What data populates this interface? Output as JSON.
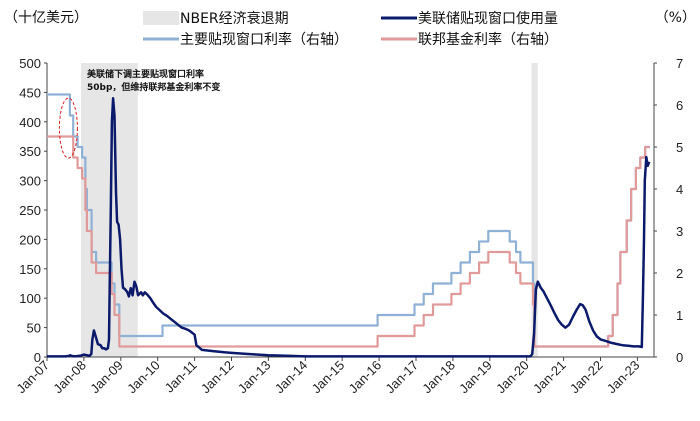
{
  "chart_data": {
    "type": "line",
    "left_unit": "（十亿美元）",
    "right_unit": "（%）",
    "left_axis": {
      "min": 0,
      "max": 500,
      "ticks": [
        0,
        50,
        100,
        150,
        200,
        250,
        300,
        350,
        400,
        450,
        500
      ]
    },
    "right_axis": {
      "min": 0,
      "max": 7,
      "ticks": [
        0,
        1,
        2,
        3,
        4,
        5,
        6,
        7
      ]
    },
    "x_range": [
      2007.0,
      2023.45
    ],
    "x_ticks": [
      {
        "label": "Jan-07",
        "x": 2007
      },
      {
        "label": "Jan-08",
        "x": 2008
      },
      {
        "label": "Jan-09",
        "x": 2009
      },
      {
        "label": "Jan-10",
        "x": 2010
      },
      {
        "label": "Jan-11",
        "x": 2011
      },
      {
        "label": "Jan-12",
        "x": 2012
      },
      {
        "label": "Jan-13",
        "x": 2013
      },
      {
        "label": "Jan-14",
        "x": 2014
      },
      {
        "label": "Jan-15",
        "x": 2015
      },
      {
        "label": "Jan-16",
        "x": 2016
      },
      {
        "label": "Jan-17",
        "x": 2017
      },
      {
        "label": "Jan-18",
        "x": 2018
      },
      {
        "label": "Jan-19",
        "x": 2019
      },
      {
        "label": "Jan-20",
        "x": 2020
      },
      {
        "label": "Jan-21",
        "x": 2021
      },
      {
        "label": "Jan-22",
        "x": 2022
      },
      {
        "label": "Jan-23",
        "x": 2023
      }
    ],
    "recessions": [
      {
        "start": 2007.92,
        "end": 2009.46
      },
      {
        "start": 2020.13,
        "end": 2020.3
      }
    ],
    "legend": {
      "recession": "NBER经济衰退期",
      "usage": "美联储贴现窗口使用量",
      "primary": "主要贴现窗口利率（右轴）",
      "ffr": "联邦基金利率（右轴）"
    },
    "colors": {
      "usage": "#0b1a6b",
      "primary": "#8fb1d6",
      "ffr": "#e09a9a",
      "recession": "#e6e6e6"
    },
    "annotation": {
      "line1": "美联储下调主要贴现窗口利率",
      "line2": "50bp，但维持联邦基金利率不变",
      "x": 2007.58,
      "y_right": 5.45
    },
    "series": [
      {
        "name": "美联储贴现窗口使用量",
        "axis": "left",
        "points": [
          [
            2007.0,
            1
          ],
          [
            2007.5,
            1
          ],
          [
            2007.6,
            2
          ],
          [
            2007.63,
            3
          ],
          [
            2007.66,
            2
          ],
          [
            2007.75,
            1
          ],
          [
            2007.9,
            2
          ],
          [
            2008.0,
            4
          ],
          [
            2008.08,
            3
          ],
          [
            2008.15,
            2
          ],
          [
            2008.2,
            5
          ],
          [
            2008.23,
            30
          ],
          [
            2008.27,
            45
          ],
          [
            2008.32,
            35
          ],
          [
            2008.38,
            22
          ],
          [
            2008.45,
            20
          ],
          [
            2008.5,
            15
          ],
          [
            2008.55,
            15
          ],
          [
            2008.6,
            13
          ],
          [
            2008.65,
            15
          ],
          [
            2008.68,
            30
          ],
          [
            2008.7,
            120
          ],
          [
            2008.73,
            250
          ],
          [
            2008.76,
            400
          ],
          [
            2008.79,
            440
          ],
          [
            2008.83,
            410
          ],
          [
            2008.87,
            280
          ],
          [
            2008.9,
            230
          ],
          [
            2008.94,
            225
          ],
          [
            2008.98,
            200
          ],
          [
            2009.02,
            150
          ],
          [
            2009.06,
            118
          ],
          [
            2009.12,
            115
          ],
          [
            2009.18,
            110
          ],
          [
            2009.22,
            103
          ],
          [
            2009.27,
            117
          ],
          [
            2009.32,
            105
          ],
          [
            2009.37,
            128
          ],
          [
            2009.42,
            120
          ],
          [
            2009.47,
            105
          ],
          [
            2009.55,
            110
          ],
          [
            2009.6,
            105
          ],
          [
            2009.65,
            110
          ],
          [
            2009.72,
            106
          ],
          [
            2009.8,
            100
          ],
          [
            2009.88,
            92
          ],
          [
            2009.96,
            85
          ],
          [
            2010.05,
            80
          ],
          [
            2010.15,
            74
          ],
          [
            2010.25,
            70
          ],
          [
            2010.35,
            65
          ],
          [
            2010.45,
            60
          ],
          [
            2010.55,
            55
          ],
          [
            2010.65,
            50
          ],
          [
            2010.75,
            48
          ],
          [
            2010.85,
            45
          ],
          [
            2010.92,
            42
          ],
          [
            2011.0,
            38
          ],
          [
            2011.05,
            20
          ],
          [
            2011.2,
            12
          ],
          [
            2011.5,
            10
          ],
          [
            2011.8,
            8
          ],
          [
            2012.0,
            7
          ],
          [
            2012.5,
            5
          ],
          [
            2013.0,
            3
          ],
          [
            2013.5,
            2
          ],
          [
            2014.0,
            1
          ],
          [
            2020.1,
            1
          ],
          [
            2020.15,
            5
          ],
          [
            2020.2,
            40
          ],
          [
            2020.25,
            115
          ],
          [
            2020.3,
            128
          ],
          [
            2020.38,
            118
          ],
          [
            2020.45,
            112
          ],
          [
            2020.55,
            100
          ],
          [
            2020.65,
            88
          ],
          [
            2020.75,
            75
          ],
          [
            2020.85,
            63
          ],
          [
            2020.95,
            55
          ],
          [
            2021.05,
            50
          ],
          [
            2021.15,
            55
          ],
          [
            2021.25,
            68
          ],
          [
            2021.35,
            80
          ],
          [
            2021.45,
            90
          ],
          [
            2021.52,
            88
          ],
          [
            2021.6,
            80
          ],
          [
            2021.7,
            60
          ],
          [
            2021.8,
            45
          ],
          [
            2021.9,
            35
          ],
          [
            2022.0,
            30
          ],
          [
            2022.15,
            27
          ],
          [
            2022.3,
            24
          ],
          [
            2022.45,
            22
          ],
          [
            2022.6,
            20
          ],
          [
            2022.75,
            19
          ],
          [
            2022.9,
            18
          ],
          [
            2023.05,
            18
          ],
          [
            2023.12,
            17
          ],
          [
            2023.15,
            100
          ],
          [
            2023.18,
            200
          ],
          [
            2023.2,
            300
          ],
          [
            2023.24,
            340
          ],
          [
            2023.28,
            325
          ],
          [
            2023.32,
            332
          ]
        ]
      },
      {
        "name": "主要贴现窗口利率（右轴）",
        "axis": "right",
        "points": [
          [
            2007.0,
            6.25
          ],
          [
            2007.62,
            6.25
          ],
          [
            2007.62,
            5.75
          ],
          [
            2007.71,
            5.75
          ],
          [
            2007.71,
            5.25
          ],
          [
            2007.83,
            5.25
          ],
          [
            2007.83,
            5.0
          ],
          [
            2007.95,
            5.0
          ],
          [
            2007.95,
            4.75
          ],
          [
            2008.04,
            4.75
          ],
          [
            2008.04,
            4.0
          ],
          [
            2008.08,
            4.0
          ],
          [
            2008.08,
            3.5
          ],
          [
            2008.21,
            3.5
          ],
          [
            2008.21,
            2.5
          ],
          [
            2008.33,
            2.5
          ],
          [
            2008.33,
            2.25
          ],
          [
            2008.75,
            2.25
          ],
          [
            2008.75,
            1.75
          ],
          [
            2008.83,
            1.75
          ],
          [
            2008.83,
            1.25
          ],
          [
            2008.96,
            1.25
          ],
          [
            2008.96,
            0.5
          ],
          [
            2010.13,
            0.5
          ],
          [
            2010.13,
            0.75
          ],
          [
            2015.96,
            0.75
          ],
          [
            2015.96,
            1.0
          ],
          [
            2016.96,
            1.0
          ],
          [
            2016.96,
            1.25
          ],
          [
            2017.21,
            1.25
          ],
          [
            2017.21,
            1.5
          ],
          [
            2017.46,
            1.5
          ],
          [
            2017.46,
            1.75
          ],
          [
            2017.96,
            1.75
          ],
          [
            2017.96,
            2.0
          ],
          [
            2018.21,
            2.0
          ],
          [
            2018.21,
            2.25
          ],
          [
            2018.46,
            2.25
          ],
          [
            2018.46,
            2.5
          ],
          [
            2018.71,
            2.5
          ],
          [
            2018.71,
            2.75
          ],
          [
            2018.96,
            2.75
          ],
          [
            2018.96,
            3.0
          ],
          [
            2019.54,
            3.0
          ],
          [
            2019.54,
            2.75
          ],
          [
            2019.71,
            2.75
          ],
          [
            2019.71,
            2.5
          ],
          [
            2019.83,
            2.5
          ],
          [
            2019.83,
            2.25
          ],
          [
            2020.17,
            2.25
          ],
          [
            2020.17,
            1.75
          ],
          [
            2020.21,
            1.75
          ],
          [
            2020.21,
            0.25
          ],
          [
            2022.21,
            0.25
          ],
          [
            2022.21,
            0.5
          ],
          [
            2022.33,
            0.5
          ],
          [
            2022.33,
            1.0
          ],
          [
            2022.46,
            1.0
          ],
          [
            2022.46,
            1.75
          ],
          [
            2022.54,
            1.75
          ],
          [
            2022.54,
            2.5
          ],
          [
            2022.71,
            2.5
          ],
          [
            2022.71,
            3.25
          ],
          [
            2022.83,
            3.25
          ],
          [
            2022.83,
            4.0
          ],
          [
            2022.96,
            4.0
          ],
          [
            2022.96,
            4.5
          ],
          [
            2023.08,
            4.5
          ],
          [
            2023.08,
            4.75
          ],
          [
            2023.21,
            4.75
          ],
          [
            2023.21,
            5.0
          ],
          [
            2023.34,
            5.0
          ]
        ]
      },
      {
        "name": "联邦基金利率（右轴）",
        "axis": "right",
        "points": [
          [
            2007.0,
            5.25
          ],
          [
            2007.71,
            5.25
          ],
          [
            2007.71,
            4.75
          ],
          [
            2007.83,
            4.75
          ],
          [
            2007.83,
            4.5
          ],
          [
            2007.95,
            4.5
          ],
          [
            2007.95,
            4.25
          ],
          [
            2008.04,
            4.25
          ],
          [
            2008.04,
            3.5
          ],
          [
            2008.08,
            3.5
          ],
          [
            2008.08,
            3.0
          ],
          [
            2008.21,
            3.0
          ],
          [
            2008.21,
            2.25
          ],
          [
            2008.33,
            2.25
          ],
          [
            2008.33,
            2.0
          ],
          [
            2008.75,
            2.0
          ],
          [
            2008.75,
            1.5
          ],
          [
            2008.83,
            1.5
          ],
          [
            2008.83,
            1.0
          ],
          [
            2008.96,
            1.0
          ],
          [
            2008.96,
            0.25
          ],
          [
            2015.96,
            0.25
          ],
          [
            2015.96,
            0.5
          ],
          [
            2016.96,
            0.5
          ],
          [
            2016.96,
            0.75
          ],
          [
            2017.21,
            0.75
          ],
          [
            2017.21,
            1.0
          ],
          [
            2017.46,
            1.0
          ],
          [
            2017.46,
            1.25
          ],
          [
            2017.96,
            1.25
          ],
          [
            2017.96,
            1.5
          ],
          [
            2018.21,
            1.5
          ],
          [
            2018.21,
            1.75
          ],
          [
            2018.46,
            1.75
          ],
          [
            2018.46,
            2.0
          ],
          [
            2018.71,
            2.0
          ],
          [
            2018.71,
            2.25
          ],
          [
            2018.96,
            2.25
          ],
          [
            2018.96,
            2.5
          ],
          [
            2019.54,
            2.5
          ],
          [
            2019.54,
            2.25
          ],
          [
            2019.71,
            2.25
          ],
          [
            2019.71,
            2.0
          ],
          [
            2019.83,
            2.0
          ],
          [
            2019.83,
            1.75
          ],
          [
            2020.17,
            1.75
          ],
          [
            2020.17,
            1.25
          ],
          [
            2020.21,
            1.25
          ],
          [
            2020.21,
            0.25
          ],
          [
            2022.21,
            0.25
          ],
          [
            2022.21,
            0.5
          ],
          [
            2022.33,
            0.5
          ],
          [
            2022.33,
            1.0
          ],
          [
            2022.46,
            1.0
          ],
          [
            2022.46,
            1.75
          ],
          [
            2022.54,
            1.75
          ],
          [
            2022.54,
            2.5
          ],
          [
            2022.71,
            2.5
          ],
          [
            2022.71,
            3.25
          ],
          [
            2022.83,
            3.25
          ],
          [
            2022.83,
            4.0
          ],
          [
            2022.96,
            4.0
          ],
          [
            2022.96,
            4.5
          ],
          [
            2023.08,
            4.5
          ],
          [
            2023.08,
            4.75
          ],
          [
            2023.21,
            4.75
          ],
          [
            2023.21,
            5.0
          ],
          [
            2023.34,
            5.0
          ]
        ]
      }
    ]
  }
}
